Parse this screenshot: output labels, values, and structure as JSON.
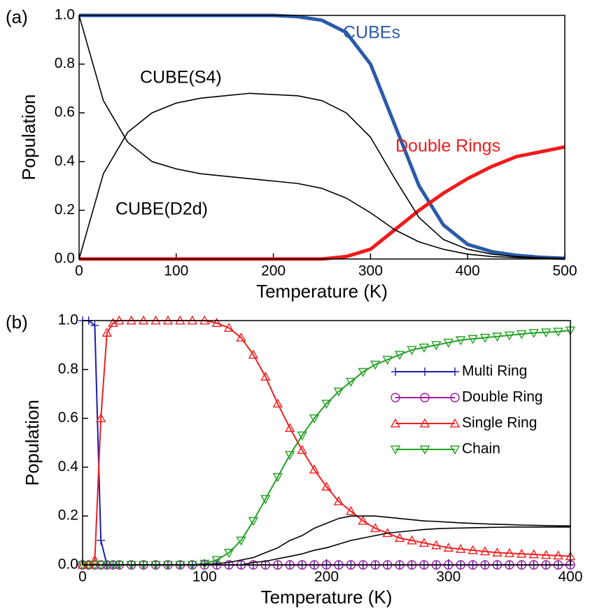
{
  "chart_data": [
    {
      "type": "line",
      "panel_label": "(a)",
      "xlabel": "Temperature (K)",
      "ylabel": "Population",
      "x": [
        0,
        25,
        50,
        75,
        100,
        125,
        150,
        175,
        200,
        225,
        250,
        275,
        300,
        325,
        350,
        375,
        400,
        425,
        450,
        475,
        500
      ],
      "series": [
        {
          "name": "CUBEs",
          "color": "#2a5aa8",
          "width": 5,
          "values": [
            1,
            1,
            1,
            1,
            1,
            1,
            1,
            1,
            1,
            0.995,
            0.98,
            0.93,
            0.8,
            0.55,
            0.3,
            0.14,
            0.06,
            0.03,
            0.015,
            0.007,
            0.003
          ]
        },
        {
          "name": "Double Rings",
          "color": "#ee1c1c",
          "width": 5,
          "values": [
            0,
            0,
            0,
            0,
            0,
            0,
            0,
            0,
            0,
            0,
            0,
            0.01,
            0.04,
            0.12,
            0.2,
            0.27,
            0.33,
            0.38,
            0.42,
            0.44,
            0.46
          ]
        },
        {
          "name": "CUBE(S4)",
          "color": "#000000",
          "width": 1.6,
          "values": [
            0,
            0.35,
            0.52,
            0.6,
            0.64,
            0.66,
            0.67,
            0.68,
            0.675,
            0.67,
            0.65,
            0.6,
            0.5,
            0.33,
            0.17,
            0.08,
            0.04,
            0.02,
            0.01,
            0.005,
            0.002
          ]
        },
        {
          "name": "CUBE(D2d)",
          "color": "#000000",
          "width": 1.6,
          "values": [
            1,
            0.65,
            0.48,
            0.4,
            0.37,
            0.35,
            0.34,
            0.33,
            0.32,
            0.31,
            0.29,
            0.25,
            0.19,
            0.12,
            0.07,
            0.04,
            0.02,
            0.01,
            0.006,
            0.003,
            0.001
          ]
        }
      ],
      "xlim": [
        0,
        500
      ],
      "ylim": [
        0,
        1
      ],
      "xticks": [
        0,
        100,
        200,
        300,
        400,
        500
      ],
      "yticks": [
        {
          "value": 0,
          "label": "0.0"
        },
        {
          "value": 0.2,
          "label": "0.2"
        },
        {
          "value": 0.4,
          "label": "0.4"
        },
        {
          "value": 0.6,
          "label": "0.6"
        },
        {
          "value": 0.8,
          "label": "0.8"
        },
        {
          "value": 1,
          "label": "1.0"
        }
      ]
    },
    {
      "type": "line",
      "panel_label": "(b)",
      "xlabel": "Temperature (K)",
      "ylabel": "Population",
      "legend": "right",
      "x": [
        0,
        5,
        10,
        15,
        20,
        25,
        30,
        40,
        50,
        60,
        70,
        80,
        90,
        100,
        110,
        120,
        130,
        140,
        150,
        160,
        170,
        180,
        190,
        200,
        210,
        220,
        230,
        240,
        250,
        260,
        270,
        280,
        290,
        300,
        310,
        320,
        330,
        340,
        350,
        360,
        370,
        380,
        390,
        400
      ],
      "series": [
        {
          "name": "Multi Ring",
          "color": "#1c1ca8",
          "width": 2,
          "marker": "plus",
          "values": [
            1,
            1,
            0.98,
            0.1,
            0,
            0,
            0,
            0,
            0,
            0,
            0,
            0,
            0,
            0,
            0,
            0,
            0,
            0,
            0,
            0,
            0,
            0,
            0,
            0,
            0,
            0,
            0,
            0,
            0,
            0,
            0,
            0,
            0,
            0,
            0,
            0,
            0,
            0,
            0,
            0,
            0,
            0,
            0,
            0
          ]
        },
        {
          "name": "Double Ring",
          "color": "#a01ca0",
          "width": 2,
          "marker": "circle",
          "values": [
            0,
            0,
            0,
            0,
            0,
            0,
            0,
            0,
            0,
            0,
            0,
            0,
            0,
            0,
            0,
            0,
            0,
            0,
            0,
            0,
            0,
            0,
            0,
            0,
            0,
            0,
            0,
            0,
            0,
            0,
            0,
            0,
            0,
            0,
            0,
            0,
            0,
            0,
            0,
            0,
            0,
            0,
            0,
            0
          ]
        },
        {
          "name": "Single Ring",
          "color": "#ee2020",
          "width": 2,
          "marker": "triangle-up",
          "values": [
            0,
            0,
            0.02,
            0.6,
            0.95,
            0.99,
            1,
            1,
            1,
            1,
            1,
            1,
            1,
            1,
            0.99,
            0.97,
            0.93,
            0.86,
            0.77,
            0.66,
            0.56,
            0.47,
            0.39,
            0.32,
            0.26,
            0.22,
            0.18,
            0.15,
            0.13,
            0.11,
            0.1,
            0.09,
            0.08,
            0.07,
            0.065,
            0.06,
            0.055,
            0.05,
            0.048,
            0.045,
            0.043,
            0.04,
            0.038,
            0.035
          ]
        },
        {
          "name": "Chain",
          "color": "#22a022",
          "width": 2,
          "marker": "triangle-down",
          "values": [
            0,
            0,
            0,
            0,
            0,
            0,
            0,
            0,
            0,
            0,
            0,
            0,
            0,
            0.005,
            0.02,
            0.05,
            0.1,
            0.18,
            0.27,
            0.36,
            0.45,
            0.53,
            0.6,
            0.66,
            0.71,
            0.75,
            0.79,
            0.82,
            0.84,
            0.86,
            0.88,
            0.89,
            0.9,
            0.91,
            0.92,
            0.925,
            0.93,
            0.935,
            0.94,
            0.945,
            0.95,
            0.952,
            0.955,
            0.96
          ]
        },
        {
          "color": "#000000",
          "width": 1.6,
          "values": [
            0,
            0,
            0,
            0,
            0,
            0,
            0,
            0,
            0,
            0,
            0,
            0,
            0,
            0.002,
            0.005,
            0.01,
            0.02,
            0.03,
            0.05,
            0.07,
            0.1,
            0.12,
            0.15,
            0.17,
            0.19,
            0.2,
            0.2,
            0.2,
            0.195,
            0.19,
            0.185,
            0.18,
            0.178,
            0.175,
            0.172,
            0.17,
            0.168,
            0.166,
            0.165,
            0.163,
            0.162,
            0.161,
            0.16,
            0.16
          ]
        },
        {
          "color": "#000000",
          "width": 1.6,
          "values": [
            0,
            0,
            0,
            0,
            0,
            0,
            0,
            0,
            0,
            0,
            0,
            0,
            0,
            0,
            0,
            0,
            0,
            0.01,
            0.015,
            0.025,
            0.035,
            0.045,
            0.06,
            0.07,
            0.085,
            0.1,
            0.11,
            0.12,
            0.13,
            0.135,
            0.14,
            0.145,
            0.148,
            0.15,
            0.151,
            0.152,
            0.153,
            0.154,
            0.155,
            0.155,
            0.155,
            0.155,
            0.155,
            0.155
          ]
        }
      ],
      "xlim": [
        0,
        400
      ],
      "ylim": [
        0,
        1
      ],
      "xticks": [
        0,
        100,
        200,
        300,
        400
      ],
      "yticks": [
        {
          "value": 0,
          "label": "0.0"
        },
        {
          "value": 0.2,
          "label": "0.2"
        },
        {
          "value": 0.4,
          "label": "0.4"
        },
        {
          "value": 0.6,
          "label": "0.6"
        },
        {
          "value": 0.8,
          "label": "0.8"
        },
        {
          "value": 1,
          "label": "1.0"
        }
      ]
    }
  ]
}
